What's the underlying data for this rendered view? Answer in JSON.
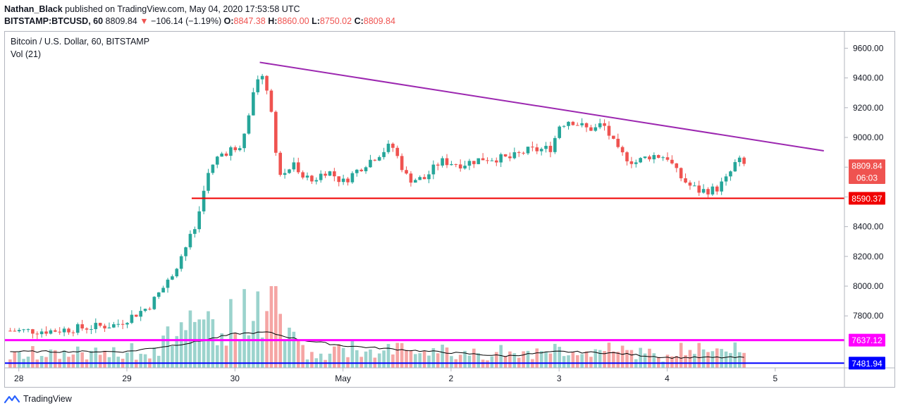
{
  "header": {
    "author": "Nathan_Black",
    "published_text": "published on TradingView.com, May 04, 2020 17:53:58 UTC",
    "symbol": "BITSTAMP:BTCUSD, 60",
    "last": "8809.84",
    "arrow": "▼",
    "change": "−106.14 (−1.19%)",
    "o_label": "O:",
    "o_value": "8847.38",
    "h_label": "H:",
    "h_value": "8860.00",
    "l_label": "L:",
    "l_value": "8750.02",
    "c_label": "C:",
    "c_value": "8809.84"
  },
  "legend": {
    "title": "Bitcoin / U.S. Dollar, 60, BITSTAMP",
    "volume": "Vol (21)"
  },
  "footer": {
    "brand": "TradingView"
  },
  "colors": {
    "up": "#26a69a",
    "down": "#ef5350",
    "up_vol": "#9bd3cd",
    "down_vol": "#f5a5a4",
    "trend": "#9c27b0",
    "support": "#f00000",
    "magenta": "#ff00ff",
    "blue": "#0000ff"
  },
  "chart_data": {
    "type": "candlestick",
    "interval": "60",
    "ylim": [
      7450,
      9700
    ],
    "y_ticks": [
      "9600.00",
      "9400.00",
      "9200.00",
      "9000.00",
      "8800.00",
      "8600.00",
      "8400.00",
      "8200.00",
      "8000.00",
      "7800.00"
    ],
    "x_ticks": [
      "28",
      "29",
      "30",
      "May",
      "2",
      "3",
      "4",
      "5"
    ],
    "price_labels": [
      {
        "text": "8809.84",
        "color": "#ef5350",
        "value": 8809.84
      },
      {
        "text": "06:03",
        "color": "#ef5350",
        "value": 8730
      },
      {
        "text": "8590.37",
        "color": "#f00000",
        "value": 8590.37
      },
      {
        "text": "7637.12",
        "color": "#ff00ff",
        "value": 7637.12
      },
      {
        "text": "7481.94",
        "color": "#0000ff",
        "value": 7481.94
      }
    ],
    "lines": [
      {
        "name": "trendline",
        "from": {
          "day": 30.23,
          "price": 9505
        },
        "to": {
          "day": 35.45,
          "price": 8910
        }
      },
      {
        "name": "support",
        "from": {
          "day": 29.6,
          "price": 8590.37
        },
        "to": {
          "day": 35.9,
          "price": 8590.37
        }
      },
      {
        "name": "level",
        "from": {
          "day": 27.9,
          "price": 7637.12
        },
        "to": {
          "day": 35.9,
          "price": 7637.12
        }
      },
      {
        "name": "level",
        "from": {
          "day": 27.9,
          "price": 7481.94
        },
        "to": {
          "day": 35.9,
          "price": 7481.94
        }
      }
    ],
    "anchors": [
      [
        27.9,
        7700
      ],
      [
        28.3,
        7700
      ],
      [
        28.6,
        7720
      ],
      [
        28.9,
        7740
      ],
      [
        29.2,
        7860
      ],
      [
        29.4,
        8050
      ],
      [
        29.5,
        8200
      ],
      [
        29.65,
        8420
      ],
      [
        29.72,
        8700
      ],
      [
        29.85,
        8880
      ],
      [
        30.05,
        8950
      ],
      [
        30.17,
        9290
      ],
      [
        30.22,
        9430
      ],
      [
        30.32,
        9300
      ],
      [
        30.4,
        8730
      ],
      [
        30.55,
        8820
      ],
      [
        30.7,
        8700
      ],
      [
        30.85,
        8780
      ],
      [
        31.0,
        8700
      ],
      [
        31.2,
        8820
      ],
      [
        31.45,
        8950
      ],
      [
        31.6,
        8720
      ],
      [
        31.75,
        8720
      ],
      [
        31.9,
        8840
      ],
      [
        32.1,
        8820
      ],
      [
        32.3,
        8860
      ],
      [
        32.55,
        8860
      ],
      [
        32.7,
        8910
      ],
      [
        32.85,
        8920
      ],
      [
        32.93,
        8930
      ],
      [
        33.0,
        9080
      ],
      [
        33.1,
        9120
      ],
      [
        33.25,
        9060
      ],
      [
        33.35,
        9060
      ],
      [
        33.4,
        9100
      ],
      [
        33.55,
        8900
      ],
      [
        33.7,
        8830
      ],
      [
        33.85,
        8880
      ],
      [
        34.0,
        8870
      ],
      [
        34.1,
        8750
      ],
      [
        34.2,
        8680
      ],
      [
        34.3,
        8640
      ],
      [
        34.45,
        8650
      ],
      [
        34.55,
        8720
      ],
      [
        34.65,
        8850
      ],
      [
        34.72,
        8810
      ]
    ],
    "volume_avg_anchors": [
      [
        27.9,
        7560
      ],
      [
        29.0,
        7560
      ],
      [
        29.6,
        7620
      ],
      [
        30.0,
        7680
      ],
      [
        30.3,
        7690
      ],
      [
        30.6,
        7640
      ],
      [
        31.0,
        7600
      ],
      [
        31.6,
        7570
      ],
      [
        32.5,
        7530
      ],
      [
        33.0,
        7560
      ],
      [
        33.5,
        7550
      ],
      [
        34.0,
        7520
      ],
      [
        34.7,
        7520
      ]
    ]
  }
}
